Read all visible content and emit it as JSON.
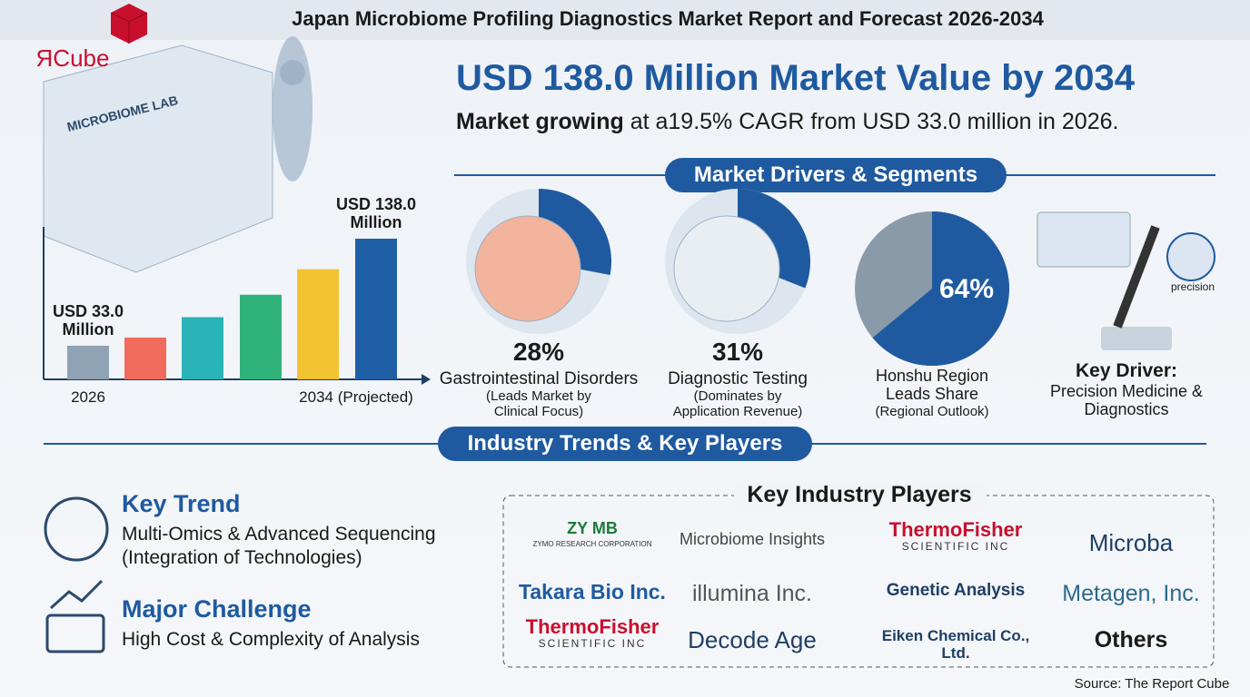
{
  "header": {
    "title": "Japan Microbiome Profiling Diagnostics Market Report and Forecast 2026-2034",
    "logo": "ЯCube"
  },
  "headline": "USD 138.0 Million Market Value by 2034",
  "subheadline": {
    "lead": "Market growing",
    "rest": "at a19.5% CAGR from USD 33.0 million in 2026."
  },
  "illustration_label": "MICROBIOME LAB",
  "chart_data": {
    "type": "bar",
    "categories": [
      "2026",
      null,
      null,
      null,
      null,
      "2034 (Projected)"
    ],
    "values": [
      33.0,
      41,
      61,
      83,
      108,
      138.0
    ],
    "value_labels": [
      "USD 33.0 Million",
      null,
      null,
      null,
      null,
      "USD 138.0 Million"
    ],
    "colors": [
      "#8fa3b5",
      "#f06b5b",
      "#2ab3b8",
      "#2fb37a",
      "#f2c231",
      "#1f5fa6"
    ]
  },
  "segments": {
    "title": "Market Drivers & Segments",
    "items": [
      {
        "value": 28,
        "value_label": "28%",
        "title": "Gastrointestinal Disorders",
        "note": "(Leads Market by Clinical Focus)"
      },
      {
        "value": 31,
        "value_label": "31%",
        "title": "Diagnostic Testing",
        "note": "(Dominates by Application Revenue)"
      },
      {
        "value": 64,
        "value_label": "64%",
        "title": "Honshu Region Leads Share",
        "note": "(Regional Outlook)"
      }
    ],
    "key_driver": {
      "title": "Key Driver:",
      "text": "Precision Medicine & Diagnostics",
      "icon_label": "precision"
    }
  },
  "trends": {
    "title": "Industry Trends & Key Players",
    "items": [
      {
        "title": "Key Trend",
        "text": "Multi-Omics & Advanced Sequencing (Integration of Technologies)"
      },
      {
        "title": "Major Challenge",
        "text": "High Cost & Complexity of Analysis"
      }
    ]
  },
  "players": {
    "title": "Key Industry Players",
    "names": [
      {
        "name": "ZY MB",
        "sub": "ZYMO RESEARCH CORPORATION"
      },
      {
        "name": "Microbiome Insights"
      },
      {
        "name": "ThermoFisher",
        "sub": "SCIENTIFIC INC"
      },
      {
        "name": "Microba"
      },
      {
        "name": "Takara Bio Inc."
      },
      {
        "name": "illumina Inc."
      },
      {
        "name": "Genetic Analysis"
      },
      {
        "name": "Metagen, Inc."
      },
      {
        "name": "ThermoFisher",
        "sub": "SCIENTIFIC INC"
      },
      {
        "name": "Decode Age"
      },
      {
        "name": "Eiken Chemical Co., Ltd."
      },
      {
        "name": "Others"
      }
    ]
  },
  "source": "Source: The Report Cube"
}
